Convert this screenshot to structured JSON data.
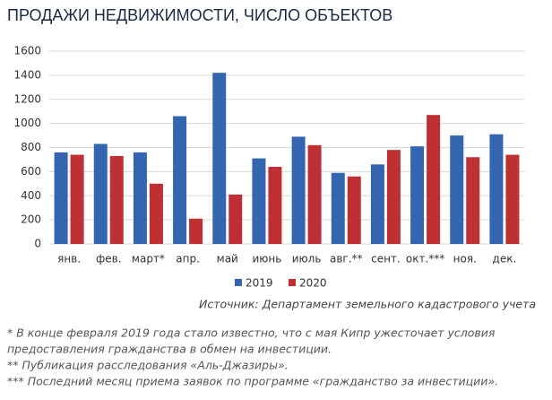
{
  "chart_data": {
    "type": "bar",
    "title": "ПРОДАЖИ НЕДВИЖИМОСТИ, ЧИСЛО ОБЪЕКТОВ",
    "categories": [
      "янв.",
      "фев.",
      "март*",
      "апр.",
      "май",
      "июнь",
      "июль",
      "авг.**",
      "сент.",
      "окт.***",
      "ноя.",
      "дек."
    ],
    "series": [
      {
        "name": "2019",
        "color": "#3466b0",
        "values": [
          760,
          830,
          760,
          1060,
          1420,
          710,
          890,
          590,
          660,
          810,
          900,
          910
        ]
      },
      {
        "name": "2020",
        "color": "#bf3035",
        "values": [
          740,
          730,
          500,
          210,
          410,
          640,
          820,
          560,
          780,
          1070,
          720,
          740
        ]
      }
    ],
    "ylim": [
      0,
      1600
    ],
    "yticks": [
      0,
      200,
      400,
      600,
      800,
      1000,
      1200,
      1400,
      1600
    ],
    "grid": true,
    "source": "Источник: Департамент земельного кадастрового учета",
    "footnotes": [
      "* В конце февраля 2019 года стало известно, что с мая Кипр ужесточает условия",
      "предоставления гражданства в обмен на инвестиции.",
      "** Публикация расследования «Аль-Джазиры».",
      "*** Последний месяц приема заявок по программе «гражданство за инвестиции»."
    ]
  }
}
